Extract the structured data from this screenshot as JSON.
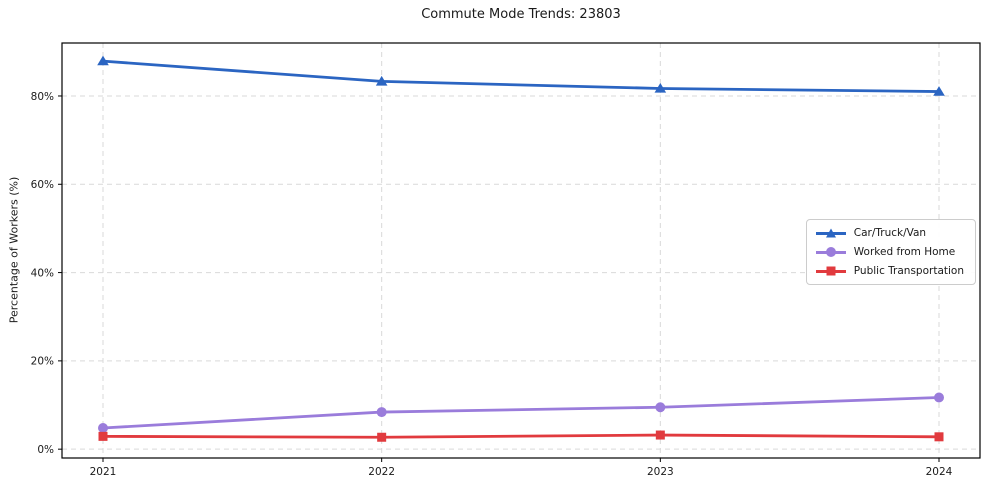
{
  "chart_data": {
    "type": "line",
    "title": "Commute Mode Trends: 23803",
    "xlabel": "",
    "ylabel": "Percentage of Workers (%)",
    "categories": [
      "2021",
      "2022",
      "2023",
      "2024"
    ],
    "ytick_labels": [
      "0%",
      "20%",
      "40%",
      "60%",
      "80%"
    ],
    "ytick_values": [
      0,
      20,
      40,
      60,
      80
    ],
    "ylim": [
      -2,
      92
    ],
    "grid": true,
    "grid_style": "dashed",
    "legend_position": "center-right",
    "series": [
      {
        "name": "Car/Truck/Van",
        "color": "#2b65c2",
        "marker": "triangle",
        "values": [
          87.9,
          83.3,
          81.7,
          81.0
        ]
      },
      {
        "name": "Worked from Home",
        "color": "#9a7cdb",
        "marker": "circle",
        "values": [
          4.8,
          8.4,
          9.5,
          11.7
        ]
      },
      {
        "name": "Public Transportation",
        "color": "#e13a3e",
        "marker": "square",
        "values": [
          2.9,
          2.7,
          3.2,
          2.8
        ]
      }
    ]
  }
}
